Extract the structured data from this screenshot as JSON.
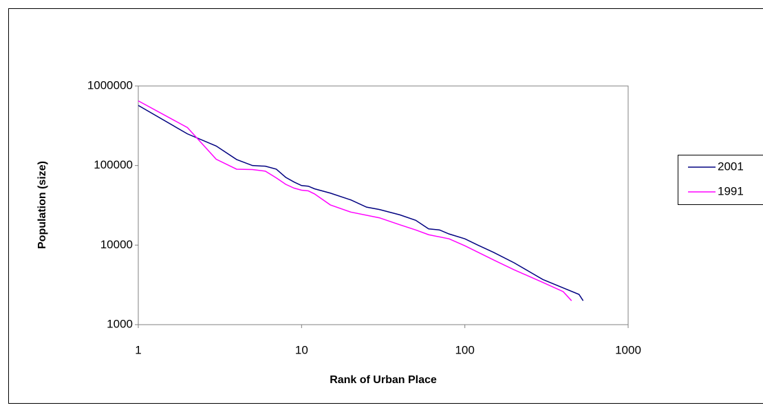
{
  "chart_data": {
    "type": "line",
    "x_label": "Rank of Urban Place",
    "y_label": "Population (size)",
    "log_x": true,
    "log_y": true,
    "grid": false,
    "legend": "right",
    "xlim": [
      1,
      1000
    ],
    "xticks": [
      1,
      10,
      100,
      1000
    ],
    "ylim": [
      1000,
      1000000
    ],
    "yticks": [
      1000,
      10000,
      100000,
      1000000
    ],
    "series": [
      {
        "name": "2001",
        "color": "#000080",
        "x": [
          1,
          2,
          3,
          4,
          5,
          6,
          7,
          8,
          9,
          10,
          11,
          12,
          15,
          20,
          25,
          30,
          40,
          50,
          60,
          70,
          80,
          100,
          120,
          150,
          200,
          250,
          300,
          400,
          500,
          530
        ],
        "values": [
          570000,
          250000,
          176000,
          119000,
          100000,
          98000,
          90000,
          71000,
          62000,
          56000,
          55000,
          51000,
          45000,
          37000,
          30000,
          28000,
          24000,
          20500,
          16000,
          15500,
          13800,
          12000,
          10000,
          8100,
          6000,
          4600,
          3700,
          2900,
          2400,
          2000
        ]
      },
      {
        "name": "1991",
        "color": "#ff00ff",
        "x": [
          1,
          2,
          3,
          4,
          5,
          6,
          7,
          8,
          9,
          10,
          11,
          12,
          15,
          20,
          30,
          40,
          50,
          60,
          80,
          100,
          150,
          200,
          300,
          400,
          450
        ],
        "values": [
          650000,
          300000,
          120000,
          90000,
          89000,
          85000,
          70000,
          58000,
          52000,
          49000,
          48000,
          44000,
          32000,
          26000,
          22000,
          18000,
          15500,
          13500,
          12000,
          9800,
          6500,
          4900,
          3400,
          2600,
          2000
        ]
      }
    ]
  }
}
